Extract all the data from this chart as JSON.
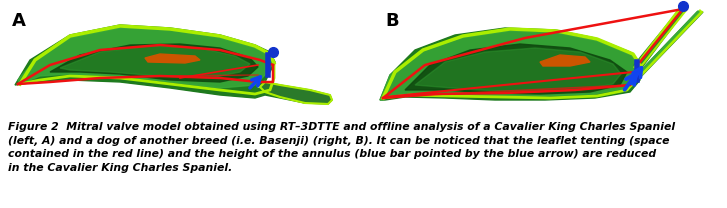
{
  "background_color": "#ffffff",
  "label_A": "A",
  "label_B": "B",
  "label_fontsize": 13,
  "label_fontweight": "bold",
  "caption_text": "Figure 2  Mitral valve model obtained using RT–3DTTE and offline analysis of a Cavalier King Charles Spaniel\n(left, A) and a dog of another breed (i.e. Basenji) (right, B). It can be noticed that the leaflet tenting (space\ncontained in the red line) and the height of the annulus (blue bar pointed by the blue arrow) are reduced\nin the Cavalier King Charles Spaniel.",
  "caption_fontsize": 7.8,
  "caption_style": "italic",
  "caption_fontweight": "bold"
}
